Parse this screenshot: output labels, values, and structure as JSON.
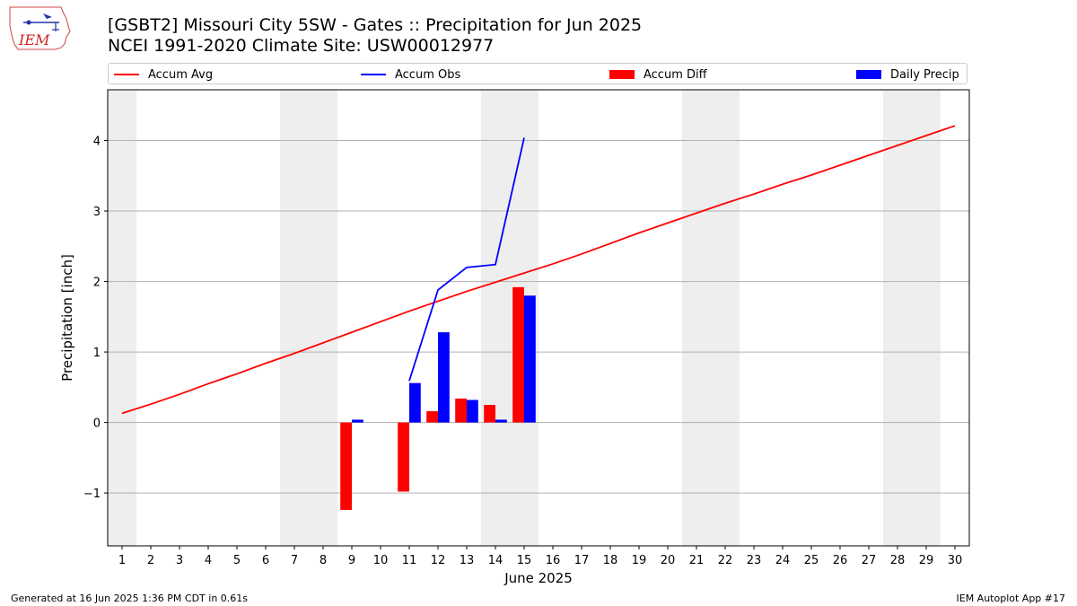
{
  "header": {
    "logo_text": "IEM",
    "title_line1": "[GSBT2] Missouri City 5SW - Gates :: Precipitation for Jun 2025",
    "title_line2": "NCEI 1991-2020 Climate Site: USW00012977"
  },
  "footer": {
    "generated": "Generated at 16 Jun 2025 1:36 PM CDT in 0.61s",
    "app": "IEM Autoplot App #17"
  },
  "colors": {
    "accum_avg": "#ff0000",
    "accum_obs": "#0000ff",
    "accum_diff": "#ff0000",
    "daily_precip": "#0000ff",
    "weekend_shade": "#eeeeee",
    "grid": "#b0b0b0"
  },
  "chart_data": {
    "type": "bar",
    "xlabel": "June 2025",
    "ylabel": "Precipitation [inch]",
    "xlim": [
      0.5,
      30.5
    ],
    "ylim": [
      -1.75,
      4.72
    ],
    "yticks": [
      -1,
      0,
      1,
      2,
      3,
      4
    ],
    "ytick_labels": [
      "−1",
      "0",
      "1",
      "2",
      "3",
      "4"
    ],
    "grid": "y",
    "legend_position": "top",
    "days": [
      1,
      2,
      3,
      4,
      5,
      6,
      7,
      8,
      9,
      10,
      11,
      12,
      13,
      14,
      15,
      16,
      17,
      18,
      19,
      20,
      21,
      22,
      23,
      24,
      25,
      26,
      27,
      28,
      29,
      30
    ],
    "weekend_ranges": [
      [
        0.5,
        1.5
      ],
      [
        6.5,
        8.5
      ],
      [
        13.5,
        15.5
      ],
      [
        20.5,
        22.5
      ],
      [
        27.5,
        29.5
      ]
    ],
    "series": [
      {
        "name": "Accum Avg",
        "kind": "line",
        "x": [
          1,
          2,
          3,
          4,
          5,
          6,
          7,
          8,
          9,
          10,
          11,
          12,
          13,
          14,
          15,
          16,
          17,
          18,
          19,
          20,
          21,
          22,
          23,
          24,
          25,
          26,
          27,
          28,
          29,
          30
        ],
        "values": [
          0.13,
          0.26,
          0.4,
          0.55,
          0.69,
          0.84,
          0.98,
          1.13,
          1.28,
          1.43,
          1.58,
          1.72,
          1.86,
          1.99,
          2.12,
          2.25,
          2.39,
          2.54,
          2.69,
          2.83,
          2.97,
          3.11,
          3.24,
          3.38,
          3.51,
          3.65,
          3.79,
          3.93,
          4.07,
          4.21
        ]
      },
      {
        "name": "Accum Obs",
        "kind": "line",
        "x": [
          11,
          12,
          13,
          14,
          15
        ],
        "values": [
          0.59,
          1.88,
          2.2,
          2.24,
          4.04
        ]
      },
      {
        "name": "Accum Diff",
        "kind": "bar",
        "x": [
          9,
          11,
          12,
          13,
          14,
          15
        ],
        "values": [
          -1.24,
          -0.98,
          0.16,
          0.34,
          0.25,
          1.92
        ]
      },
      {
        "name": "Daily Precip",
        "kind": "bar",
        "x": [
          9,
          11,
          12,
          13,
          14,
          15
        ],
        "values": [
          0.04,
          0.56,
          1.28,
          0.32,
          0.04,
          1.8
        ]
      }
    ]
  }
}
